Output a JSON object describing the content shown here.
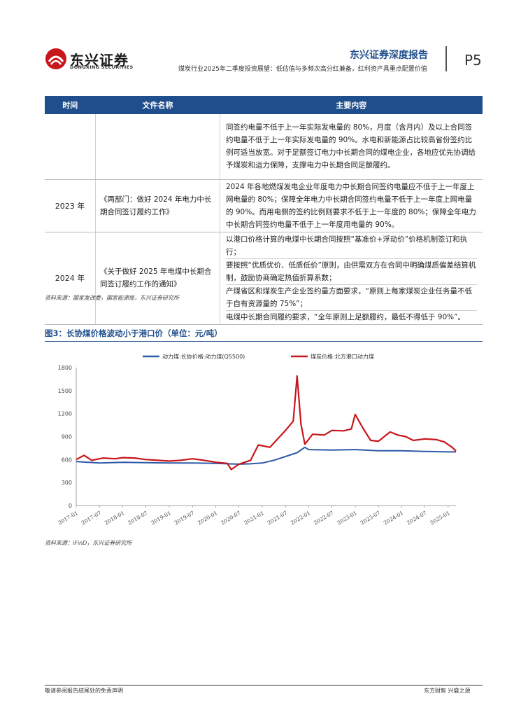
{
  "header": {
    "logo_cn": "东兴证券",
    "logo_en": "DONGXING SECURITIES",
    "report_type": "东兴证券深度报告",
    "subtitle": "煤炭行业2025年二季度投资展望：低估值与多频次高分红兼备，红利资产具重点配置价值",
    "page_no": "P5"
  },
  "table": {
    "headers": [
      "时间",
      "文件名称",
      "主要内容"
    ],
    "rows": [
      {
        "time": "",
        "doc": "",
        "content": [
          "同签约电量不低于上一年实际发电量的 80%，月度（含月内）及以上合同签约电量不低于上一年实际发电量的 90%。水电和新能源占比较高省份签约比例可适当放宽。对于足额签订电力中长期合同的煤电企业，各地应优先协调给予煤炭和运力保障，支撑电力中长期合同足额履约。"
        ]
      },
      {
        "time": "2023 年",
        "doc": "《两部门：做好 2024 年电力中长期合同签订履约工作》",
        "content": [
          "2024 年各地燃煤发电企业年度电力中长期合同签约电量应不低于上一年度上网电量的 80%；保障全年电力中长期合同签约电量不低于上一年度上网电量的 90%。而用电侧的签约比例则要求不低于上一年度的 80%；保障全年电力中长期合同签约电量不低于上一年度用电量的 90%。"
        ]
      },
      {
        "time": "2024 年",
        "doc": "《关于做好 2025 年电煤中长期合同签订履约工作的通知》",
        "content": [
          "以港口价格计算的电煤中长期合同按照“基准价+浮动价”价格机制签订和执行；",
          "要按照“优质优价、低质低价”原则，由供需双方在合同中明确煤质偏差结算机制，鼓励协商确定热值折算系数；",
          "产煤省区和煤炭生产企业签约量方面要求，“原则上每家煤炭企业任务量不低于自有资源量的 75%”；",
          "电煤中长期合同履约要求，“全年原则上足额履约，最低不得低于 90%”。"
        ]
      }
    ],
    "source": "资料来源：国家发改委，国家能源局，东兴证券研究所"
  },
  "figure": {
    "title": "图3：长协煤价格波动小于港口价（单位：元/吨）",
    "source": "资料来源：iFinD，东兴证券研究所"
  },
  "chart_data": {
    "type": "line",
    "title": "",
    "ylim": [
      0,
      1800
    ],
    "yticks": [
      "0",
      "300",
      "600",
      "900",
      "1200",
      "1500",
      "1800"
    ],
    "yticks_values": [
      0,
      300,
      600,
      900,
      1200,
      1500,
      1800
    ],
    "x_range": [
      "2017-01",
      "2025-03"
    ],
    "xticks": [
      "2017-01",
      "2017-07",
      "2018-01",
      "2018-07",
      "2019-01",
      "2019-07",
      "2020-01",
      "2020-07",
      "2021-01",
      "2021-07",
      "2022-01",
      "2022-07",
      "2023-01",
      "2023-07",
      "2024-01",
      "2024-07",
      "2025-01"
    ],
    "legend_position": "top",
    "grid": false,
    "series": [
      {
        "name": "动力煤:长协价格:动力煤(Q5500)",
        "color": "#2e5aa8",
        "points": [
          [
            "2017-01",
            575
          ],
          [
            "2017-04",
            565
          ],
          [
            "2017-07",
            555
          ],
          [
            "2017-10",
            560
          ],
          [
            "2018-01",
            565
          ],
          [
            "2018-07",
            560
          ],
          [
            "2019-01",
            555
          ],
          [
            "2019-07",
            555
          ],
          [
            "2020-01",
            550
          ],
          [
            "2020-04",
            545
          ],
          [
            "2020-07",
            540
          ],
          [
            "2020-10",
            545
          ],
          [
            "2021-01",
            555
          ],
          [
            "2021-04",
            590
          ],
          [
            "2021-07",
            640
          ],
          [
            "2021-10",
            690
          ],
          [
            "2021-12",
            760
          ],
          [
            "2022-01",
            730
          ],
          [
            "2022-07",
            725
          ],
          [
            "2023-01",
            730
          ],
          [
            "2023-07",
            715
          ],
          [
            "2024-01",
            715
          ],
          [
            "2024-07",
            705
          ],
          [
            "2025-01",
            700
          ],
          [
            "2025-03",
            700
          ]
        ]
      },
      {
        "name": "煤炭价格:北方港口动力煤",
        "color": "#c8161d",
        "points": [
          [
            "2017-01",
            600
          ],
          [
            "2017-03",
            655
          ],
          [
            "2017-05",
            590
          ],
          [
            "2017-08",
            620
          ],
          [
            "2017-11",
            610
          ],
          [
            "2018-01",
            625
          ],
          [
            "2018-04",
            620
          ],
          [
            "2018-07",
            600
          ],
          [
            "2018-10",
            590
          ],
          [
            "2019-01",
            580
          ],
          [
            "2019-04",
            590
          ],
          [
            "2019-07",
            610
          ],
          [
            "2019-10",
            590
          ],
          [
            "2020-01",
            565
          ],
          [
            "2020-04",
            550
          ],
          [
            "2020-05",
            470
          ],
          [
            "2020-07",
            540
          ],
          [
            "2020-10",
            590
          ],
          [
            "2020-12",
            790
          ],
          [
            "2021-03",
            760
          ],
          [
            "2021-05",
            870
          ],
          [
            "2021-07",
            980
          ],
          [
            "2021-09",
            1100
          ],
          [
            "2021-10",
            1690
          ],
          [
            "2021-11",
            1060
          ],
          [
            "2021-12",
            800
          ],
          [
            "2022-02",
            930
          ],
          [
            "2022-05",
            920
          ],
          [
            "2022-07",
            980
          ],
          [
            "2022-10",
            975
          ],
          [
            "2022-12",
            1000
          ],
          [
            "2023-01",
            1190
          ],
          [
            "2023-03",
            1010
          ],
          [
            "2023-05",
            850
          ],
          [
            "2023-07",
            840
          ],
          [
            "2023-10",
            960
          ],
          [
            "2023-12",
            920
          ],
          [
            "2024-02",
            900
          ],
          [
            "2024-04",
            850
          ],
          [
            "2024-07",
            870
          ],
          [
            "2024-10",
            860
          ],
          [
            "2024-12",
            830
          ],
          [
            "2025-02",
            760
          ],
          [
            "2025-03",
            710
          ]
        ]
      }
    ]
  },
  "footer": {
    "left": "敬请参阅报告结尾处的免责声明",
    "right": "东方财智 兴盛之源"
  },
  "colors": {
    "brand_blue": "#1f4e8c",
    "brand_red": "#c8161d"
  }
}
